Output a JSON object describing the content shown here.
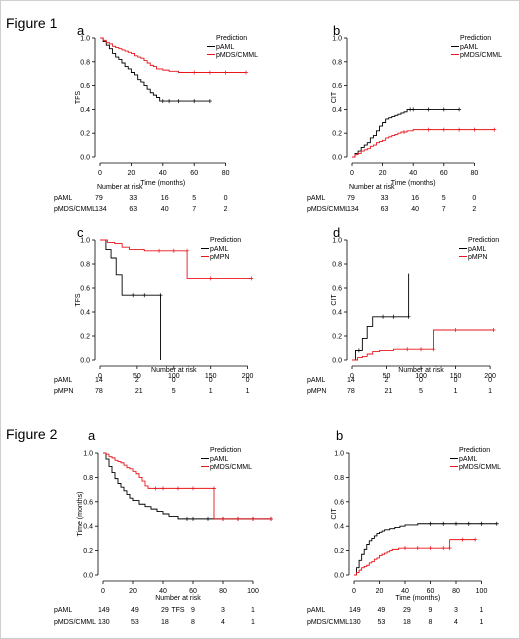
{
  "figure_titles": [
    "Figure 1",
    "Figure 2"
  ],
  "colors": {
    "black": "#000000",
    "red": "#e8151b"
  },
  "chart_data": [
    {
      "type": "line",
      "panel_label": "a",
      "xlabel": "Time (months)",
      "ylabel": "TFS",
      "xlim": [
        0,
        100
      ],
      "ylim": [
        0,
        1.0
      ],
      "xticks": [
        0,
        20,
        40,
        60,
        80
      ],
      "yticks": [
        "0.0",
        "0.2",
        "0.4",
        "0.6",
        "0.8",
        "1.0"
      ],
      "legend": {
        "title": "Prediction",
        "position": "top-right"
      },
      "series": [
        {
          "name": "pAML",
          "color": "#000000",
          "x": [
            0,
            2,
            4,
            6,
            8,
            10,
            12,
            14,
            16,
            18,
            20,
            22,
            24,
            26,
            28,
            30,
            32,
            34,
            36,
            38,
            40,
            44,
            50,
            60,
            70
          ],
          "y": [
            1.0,
            0.97,
            0.94,
            0.91,
            0.87,
            0.84,
            0.82,
            0.79,
            0.76,
            0.74,
            0.71,
            0.69,
            0.65,
            0.63,
            0.6,
            0.57,
            0.54,
            0.52,
            0.5,
            0.47,
            0.47,
            0.47,
            0.47,
            0.47,
            0.47
          ]
        },
        {
          "name": "pMDS/CMML",
          "color": "#e8151b",
          "x": [
            0,
            2,
            4,
            6,
            8,
            10,
            12,
            14,
            16,
            18,
            20,
            22,
            24,
            26,
            28,
            30,
            32,
            34,
            36,
            40,
            44,
            50,
            60,
            70,
            80,
            93
          ],
          "y": [
            1.0,
            0.98,
            0.96,
            0.95,
            0.93,
            0.92,
            0.91,
            0.9,
            0.89,
            0.88,
            0.87,
            0.85,
            0.84,
            0.83,
            0.81,
            0.79,
            0.77,
            0.76,
            0.74,
            0.73,
            0.72,
            0.71,
            0.71,
            0.71,
            0.71,
            0.71
          ]
        }
      ],
      "risk_table": {
        "title": "Number at risk",
        "rows": [
          {
            "label": "pAML",
            "values": [
              "79",
              "33",
              "16",
              "5",
              "0"
            ]
          },
          {
            "label": "pMDS/CMML",
            "values": [
              "134",
              "63",
              "40",
              "7",
              "2"
            ]
          }
        ]
      }
    },
    {
      "type": "line",
      "panel_label": "b",
      "xlabel": "Time (months)",
      "ylabel": "CIT",
      "xlim": [
        0,
        100
      ],
      "ylim": [
        0,
        1.0
      ],
      "xticks": [
        0,
        20,
        40,
        60,
        80
      ],
      "yticks": [
        "0.0",
        "0.2",
        "0.4",
        "0.6",
        "0.8",
        "1.0"
      ],
      "legend": {
        "title": "Prediction",
        "position": "top-right"
      },
      "series": [
        {
          "name": "pAML",
          "color": "#000000",
          "x": [
            0,
            2,
            4,
            6,
            8,
            10,
            12,
            14,
            16,
            18,
            20,
            22,
            24,
            26,
            28,
            30,
            32,
            34,
            36,
            38,
            40,
            50,
            60,
            70
          ],
          "y": [
            0,
            0.03,
            0.05,
            0.08,
            0.1,
            0.12,
            0.16,
            0.18,
            0.22,
            0.26,
            0.29,
            0.32,
            0.33,
            0.34,
            0.35,
            0.36,
            0.37,
            0.38,
            0.4,
            0.4,
            0.4,
            0.4,
            0.4,
            0.4
          ]
        },
        {
          "name": "pMDS/CMML",
          "color": "#e8151b",
          "x": [
            0,
            2,
            4,
            6,
            8,
            10,
            12,
            14,
            16,
            18,
            20,
            22,
            24,
            26,
            28,
            30,
            32,
            34,
            36,
            40,
            50,
            60,
            70,
            80,
            93
          ],
          "y": [
            0,
            0.02,
            0.03,
            0.05,
            0.06,
            0.07,
            0.09,
            0.1,
            0.12,
            0.13,
            0.14,
            0.16,
            0.17,
            0.18,
            0.19,
            0.2,
            0.21,
            0.21,
            0.22,
            0.23,
            0.23,
            0.23,
            0.23,
            0.23,
            0.23
          ]
        }
      ],
      "risk_table": {
        "title": "Number at risk",
        "rows": [
          {
            "label": "pAML",
            "values": [
              "79",
              "33",
              "16",
              "5",
              "0"
            ]
          },
          {
            "label": "pMDS/CMML",
            "values": [
              "134",
              "63",
              "40",
              "7",
              "2"
            ]
          }
        ]
      }
    },
    {
      "type": "line",
      "panel_label": "c",
      "xlabel": "Number at risk",
      "ylabel": "TFS",
      "xlim": [
        0,
        210
      ],
      "ylim": [
        0,
        1.0
      ],
      "xticks": [
        0,
        50,
        100,
        150,
        200
      ],
      "yticks": [
        "0.0",
        "0.2",
        "0.4",
        "0.6",
        "0.8",
        "1.0"
      ],
      "legend": {
        "title": "Prediction",
        "position": "top-right"
      },
      "series": [
        {
          "name": "pAML",
          "color": "#000000",
          "x": [
            0,
            8,
            15,
            22,
            30,
            45,
            60,
            82,
            82
          ],
          "y": [
            1.0,
            0.92,
            0.85,
            0.71,
            0.54,
            0.54,
            0.54,
            0.54,
            0.0
          ]
        },
        {
          "name": "pMPN",
          "color": "#e8151b",
          "x": [
            0,
            10,
            20,
            30,
            40,
            60,
            80,
            100,
            118,
            118,
            150,
            205
          ],
          "y": [
            1.0,
            0.98,
            0.97,
            0.94,
            0.92,
            0.91,
            0.91,
            0.91,
            0.91,
            0.68,
            0.68,
            0.68
          ]
        }
      ],
      "risk_table": {
        "title": "",
        "rows": [
          {
            "label": "pAML",
            "values": [
              "14",
              "2",
              "0",
              "0",
              "0"
            ]
          },
          {
            "label": "pMPN",
            "values": [
              "78",
              "21",
              "5",
              "1",
              "1"
            ]
          }
        ]
      }
    },
    {
      "type": "line",
      "panel_label": "d",
      "xlabel": "Number at risk",
      "ylabel": "CIT",
      "xlim": [
        0,
        210
      ],
      "ylim": [
        0,
        1.0
      ],
      "xticks": [
        0,
        50,
        100,
        150,
        200
      ],
      "yticks": [
        "0.0",
        "0.2",
        "0.4",
        "0.6",
        "0.8",
        "1.0"
      ],
      "legend": {
        "title": "Prediction",
        "position": "top-right"
      },
      "series": [
        {
          "name": "pAML",
          "color": "#000000",
          "x": [
            0,
            5,
            10,
            15,
            22,
            30,
            45,
            60,
            82,
            82
          ],
          "y": [
            0,
            0.08,
            0.08,
            0.18,
            0.28,
            0.36,
            0.36,
            0.36,
            0.36,
            0.72
          ]
        },
        {
          "name": "pMPN",
          "color": "#e8151b",
          "x": [
            0,
            8,
            15,
            22,
            30,
            40,
            60,
            80,
            100,
            118,
            118,
            150,
            205
          ],
          "y": [
            0,
            0.02,
            0.03,
            0.05,
            0.07,
            0.08,
            0.09,
            0.09,
            0.09,
            0.09,
            0.25,
            0.25,
            0.25
          ]
        }
      ],
      "risk_table": {
        "title": "",
        "rows": [
          {
            "label": "pAML",
            "values": [
              "14",
              "2",
              "0",
              "0",
              "0"
            ]
          },
          {
            "label": "pMPN",
            "values": [
              "78",
              "21",
              "5",
              "1",
              "1"
            ]
          }
        ]
      }
    },
    {
      "type": "line",
      "panel_label": "a",
      "xlabel": "TFS",
      "xlabel_top": "Number at risk",
      "ylabel": "Time (months)",
      "xlim": [
        0,
        120
      ],
      "ylim": [
        0,
        1.0
      ],
      "xticks": [
        0,
        20,
        40,
        60,
        80,
        100
      ],
      "yticks": [
        "0.0",
        "0.2",
        "0.4",
        "0.6",
        "0.8",
        "1.0"
      ],
      "legend": {
        "title": "Prediction",
        "position": "top-right"
      },
      "series": [
        {
          "name": "pAML",
          "color": "#000000",
          "x": [
            0,
            2,
            4,
            6,
            8,
            10,
            12,
            14,
            16,
            18,
            20,
            24,
            28,
            32,
            36,
            40,
            44,
            50,
            56,
            60,
            70,
            80,
            90,
            100,
            112
          ],
          "y": [
            1.0,
            0.95,
            0.89,
            0.84,
            0.79,
            0.75,
            0.72,
            0.69,
            0.66,
            0.63,
            0.61,
            0.58,
            0.56,
            0.54,
            0.52,
            0.5,
            0.48,
            0.46,
            0.46,
            0.46,
            0.46,
            0.46,
            0.46,
            0.46,
            0.46
          ]
        },
        {
          "name": "pMDS/CMML",
          "color": "#e8151b",
          "x": [
            0,
            2,
            4,
            6,
            8,
            10,
            12,
            14,
            16,
            18,
            20,
            22,
            24,
            26,
            28,
            30,
            35,
            40,
            50,
            60,
            74,
            74,
            80,
            90,
            100,
            112
          ],
          "y": [
            1.0,
            0.99,
            0.97,
            0.96,
            0.94,
            0.93,
            0.92,
            0.9,
            0.88,
            0.87,
            0.85,
            0.83,
            0.8,
            0.77,
            0.73,
            0.71,
            0.71,
            0.71,
            0.71,
            0.71,
            0.71,
            0.46,
            0.46,
            0.46,
            0.46,
            0.46
          ]
        }
      ],
      "risk_table": {
        "title": "",
        "rows": [
          {
            "label": "pAML",
            "values": [
              "149",
              "49",
              "29",
              "9",
              "3",
              "1"
            ]
          },
          {
            "label": "pMDS/CMML",
            "values": [
              "130",
              "53",
              "18",
              "8",
              "4",
              "1"
            ]
          }
        ]
      }
    },
    {
      "type": "line",
      "panel_label": "b",
      "xlabel": "Time (months)",
      "ylabel": "CIT",
      "xlim": [
        0,
        120
      ],
      "ylim": [
        0,
        1.0
      ],
      "xticks": [
        0,
        20,
        40,
        60,
        80,
        100
      ],
      "yticks": [
        "0.0",
        "0.2",
        "0.4",
        "0.6",
        "0.8",
        "1.0"
      ],
      "legend": {
        "title": "Prediction",
        "position": "top-right"
      },
      "series": [
        {
          "name": "pAML",
          "color": "#000000",
          "x": [
            0,
            2,
            4,
            6,
            8,
            10,
            12,
            14,
            16,
            18,
            20,
            22,
            24,
            28,
            32,
            36,
            40,
            50,
            60,
            70,
            80,
            90,
            100,
            112
          ],
          "y": [
            0,
            0.06,
            0.12,
            0.17,
            0.21,
            0.25,
            0.28,
            0.3,
            0.32,
            0.34,
            0.35,
            0.36,
            0.37,
            0.38,
            0.39,
            0.4,
            0.41,
            0.42,
            0.42,
            0.42,
            0.42,
            0.42,
            0.42,
            0.42
          ]
        },
        {
          "name": "pMDS/CMML",
          "color": "#e8151b",
          "x": [
            0,
            2,
            4,
            6,
            8,
            10,
            12,
            14,
            16,
            18,
            20,
            22,
            24,
            26,
            28,
            30,
            35,
            40,
            50,
            60,
            70,
            75,
            75,
            85,
            95
          ],
          "y": [
            0,
            0.02,
            0.04,
            0.06,
            0.07,
            0.08,
            0.1,
            0.11,
            0.13,
            0.14,
            0.16,
            0.17,
            0.18,
            0.19,
            0.2,
            0.21,
            0.22,
            0.22,
            0.22,
            0.22,
            0.22,
            0.22,
            0.29,
            0.29,
            0.29
          ]
        }
      ],
      "risk_table": {
        "title": "",
        "rows": [
          {
            "label": "pAML",
            "values": [
              "149",
              "49",
              "29",
              "9",
              "3",
              "1"
            ]
          },
          {
            "label": "pMDS/CMML",
            "values": [
              "130",
              "53",
              "18",
              "8",
              "4",
              "1"
            ]
          }
        ]
      }
    }
  ]
}
